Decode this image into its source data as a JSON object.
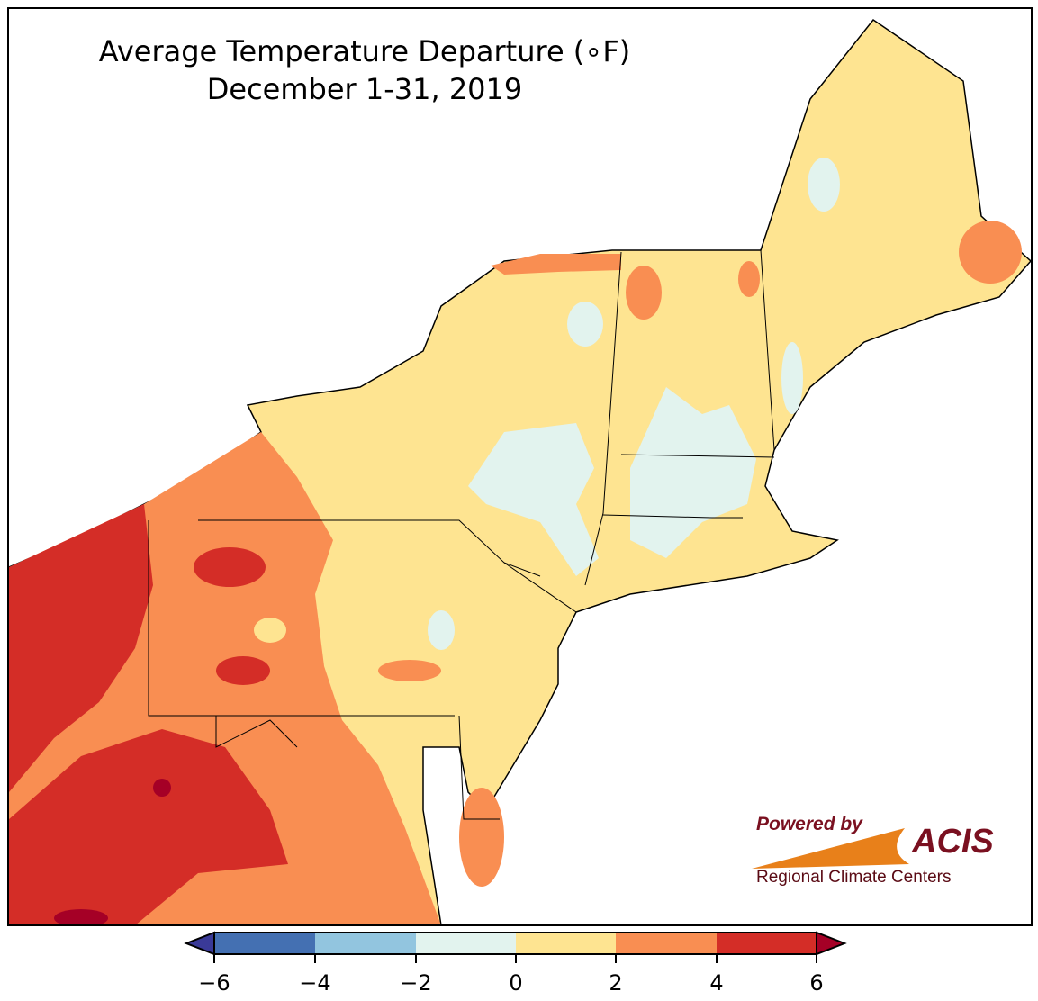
{
  "title": {
    "line1": "Average Temperature Departure (∘F)",
    "line2": "December 1-31, 2019"
  },
  "logo": {
    "powered_by": "Powered by",
    "brand": "ACIS",
    "subtitle": "Regional Climate Centers"
  },
  "colorbar": {
    "ticks": [
      "−6",
      "−4",
      "−2",
      "0",
      "2",
      "4",
      "6"
    ],
    "colors": [
      "#3a3a98",
      "#4470b2",
      "#92c5df",
      "#e2f3ee",
      "#fee491",
      "#f98e52",
      "#d42d27",
      "#a50026"
    ]
  },
  "colors": {
    "land_base": "#fee491",
    "warm": "#f98e52",
    "hot": "#d42d27",
    "very_hot": "#a50026",
    "cool": "#e2f3ee"
  }
}
